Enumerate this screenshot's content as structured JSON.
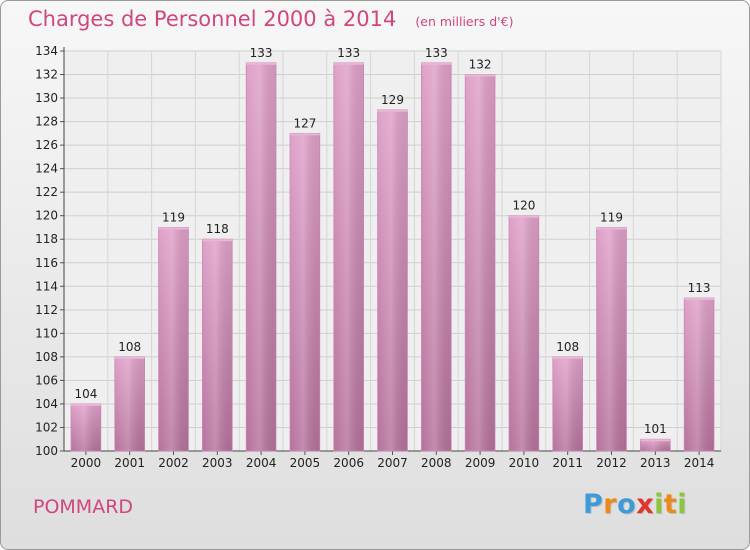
{
  "chart_data": {
    "type": "bar",
    "title": "Charges de Personnel 2000 à 2014",
    "subtitle": "(en milliers d'€)",
    "categories": [
      "2000",
      "2001",
      "2002",
      "2003",
      "2004",
      "2005",
      "2006",
      "2007",
      "2008",
      "2009",
      "2010",
      "2011",
      "2012",
      "2013",
      "2014"
    ],
    "values": [
      104,
      108,
      119,
      118,
      133,
      127,
      133,
      129,
      133,
      132,
      120,
      108,
      119,
      101,
      113
    ],
    "ylim": [
      100,
      134
    ],
    "yticks": [
      100,
      102,
      104,
      106,
      108,
      110,
      112,
      114,
      116,
      118,
      120,
      122,
      124,
      126,
      128,
      130,
      132,
      134
    ],
    "grid": true,
    "bar_color": "#d98cbd",
    "bar_color_dark": "#b66e9b"
  },
  "commune": "POMMARD",
  "brand": {
    "name": "Proxiti",
    "letters": [
      {
        "ch": "P",
        "color": "#3f9bd7"
      },
      {
        "ch": "r",
        "color": "#e98a1a"
      },
      {
        "ch": "o",
        "color": "#3f9bd7"
      },
      {
        "ch": "x",
        "color": "#e0352c"
      },
      {
        "ch": "i",
        "color": "#8cc63f"
      },
      {
        "ch": "t",
        "color": "#e98a1a"
      },
      {
        "ch": "i",
        "color": "#8cc63f"
      }
    ]
  }
}
